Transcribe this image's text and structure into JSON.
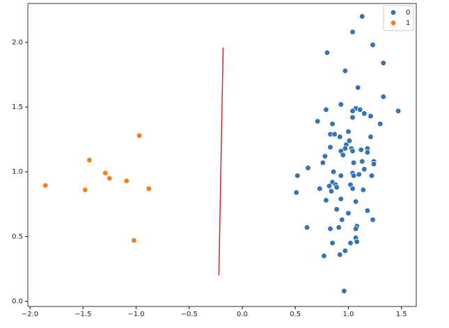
{
  "chart_data": {
    "type": "scatter",
    "xlim": [
      -2.02,
      1.64
    ],
    "ylim": [
      -0.04,
      2.3
    ],
    "xticks": [
      {
        "value": -2.0,
        "label": "−2.0"
      },
      {
        "value": -1.5,
        "label": "−1.5"
      },
      {
        "value": -1.0,
        "label": "−1.0"
      },
      {
        "value": -0.5,
        "label": "−0.5"
      },
      {
        "value": 0.0,
        "label": "0.0"
      },
      {
        "value": 0.5,
        "label": "0.5"
      },
      {
        "value": 1.0,
        "label": "1.0"
      },
      {
        "value": 1.5,
        "label": "1.5"
      }
    ],
    "yticks": [
      {
        "value": 0.0,
        "label": "0.0"
      },
      {
        "value": 0.5,
        "label": "0.5"
      },
      {
        "value": 1.0,
        "label": "1.0"
      },
      {
        "value": 1.5,
        "label": "1.5"
      },
      {
        "value": 2.0,
        "label": "2.0"
      }
    ],
    "legend": "upper right",
    "series": [
      {
        "name": "0",
        "color": "#3274b5",
        "x": [
          1.13,
          1.04,
          1.23,
          0.8,
          1.33,
          0.97,
          1.09,
          1.33,
          0.93,
          1.47,
          0.79,
          1.07,
          1.04,
          1.15,
          1.11,
          1.21,
          1.04,
          0.71,
          1.3,
          0.85,
          1.0,
          0.83,
          0.87,
          0.92,
          1.21,
          1.01,
          0.98,
          0.83,
          0.97,
          1.03,
          1.12,
          1.18,
          0.93,
          1.04,
          1.18,
          0.95,
          0.78,
          1.13,
          1.24,
          1.24,
          1.05,
          0.76,
          0.62,
          1.15,
          0.86,
          1.04,
          1.1,
          0.93,
          1.05,
          1.22,
          0.52,
          0.85,
          0.88,
          0.82,
          0.89,
          1.02,
          0.73,
          1.04,
          1.14,
          0.84,
          0.51,
          0.93,
          0.79,
          1.07,
          0.89,
          1.0,
          1.18,
          0.94,
          1.23,
          0.61,
          0.83,
          0.91,
          1.08,
          1.07,
          1.07,
          1.08,
          1.02,
          0.85,
          0.97,
          0.92,
          0.77,
          0.96
        ],
        "values": [
          2.2,
          2.08,
          1.98,
          1.92,
          1.84,
          1.78,
          1.65,
          1.58,
          1.52,
          1.47,
          1.48,
          1.49,
          1.47,
          1.45,
          1.48,
          1.43,
          1.42,
          1.39,
          1.37,
          1.37,
          1.31,
          1.29,
          1.29,
          1.27,
          1.27,
          1.24,
          1.21,
          1.19,
          1.18,
          1.18,
          1.17,
          1.18,
          1.16,
          1.16,
          1.15,
          1.13,
          1.12,
          1.08,
          1.08,
          1.06,
          1.07,
          1.07,
          1.03,
          1.02,
          1.0,
          0.99,
          0.98,
          0.97,
          0.97,
          0.97,
          0.97,
          0.92,
          0.9,
          0.89,
          0.88,
          0.9,
          0.87,
          0.87,
          0.86,
          0.85,
          0.84,
          0.79,
          0.78,
          0.77,
          0.71,
          0.68,
          0.7,
          0.63,
          0.63,
          0.57,
          0.56,
          0.57,
          0.58,
          0.56,
          0.49,
          0.46,
          0.45,
          0.45,
          0.39,
          0.36,
          0.35,
          0.08
        ]
      },
      {
        "name": "1",
        "color": "#f4801b",
        "x": [
          -1.855,
          -1.48,
          -1.44,
          -1.29,
          -1.25,
          -1.09,
          -0.97,
          -0.88,
          -1.02
        ],
        "values": [
          0.895,
          0.86,
          1.09,
          0.99,
          0.95,
          0.93,
          1.28,
          0.87,
          0.47
        ]
      }
    ],
    "lines": [
      {
        "color": "#d62728",
        "x": [
          -0.22,
          -0.18
        ],
        "values": [
          0.2,
          1.96
        ]
      }
    ]
  }
}
